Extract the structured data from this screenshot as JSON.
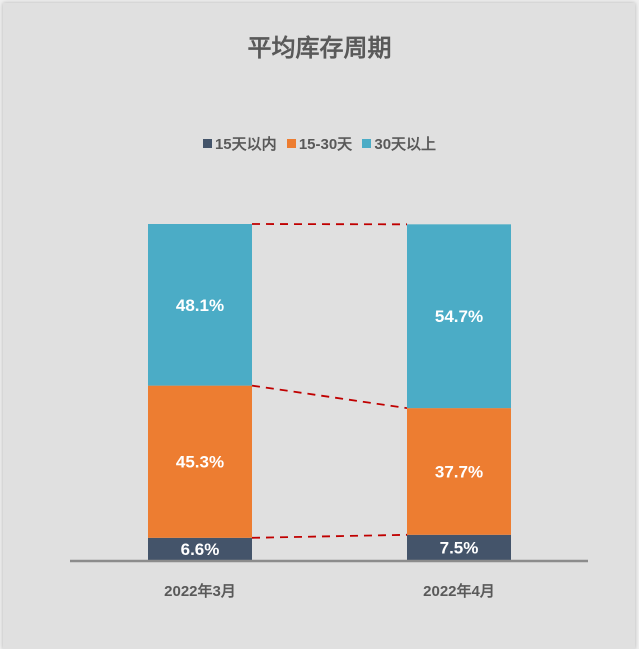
{
  "chart_data": {
    "type": "bar",
    "stacked": true,
    "title": "平均库存周期",
    "categories": [
      "2022年3月",
      "2022年4月"
    ],
    "series": [
      {
        "name": "15天以内",
        "values": [
          6.6,
          7.5
        ],
        "labels": [
          "6.6%",
          "7.5%"
        ],
        "color": "#44546a"
      },
      {
        "name": "15-30天",
        "values": [
          45.3,
          37.7
        ],
        "labels": [
          "45.3%",
          "37.7%"
        ],
        "color": "#ed7d31"
      },
      {
        "name": "30天以上",
        "values": [
          48.1,
          54.7
        ],
        "labels": [
          "48.1%",
          "54.7%"
        ],
        "color": "#4bacc6"
      }
    ],
    "ylim": [
      0,
      100
    ],
    "legend_position": "top",
    "grid": false,
    "series_lines": {
      "color": "#c00000",
      "style": "dashed"
    }
  }
}
